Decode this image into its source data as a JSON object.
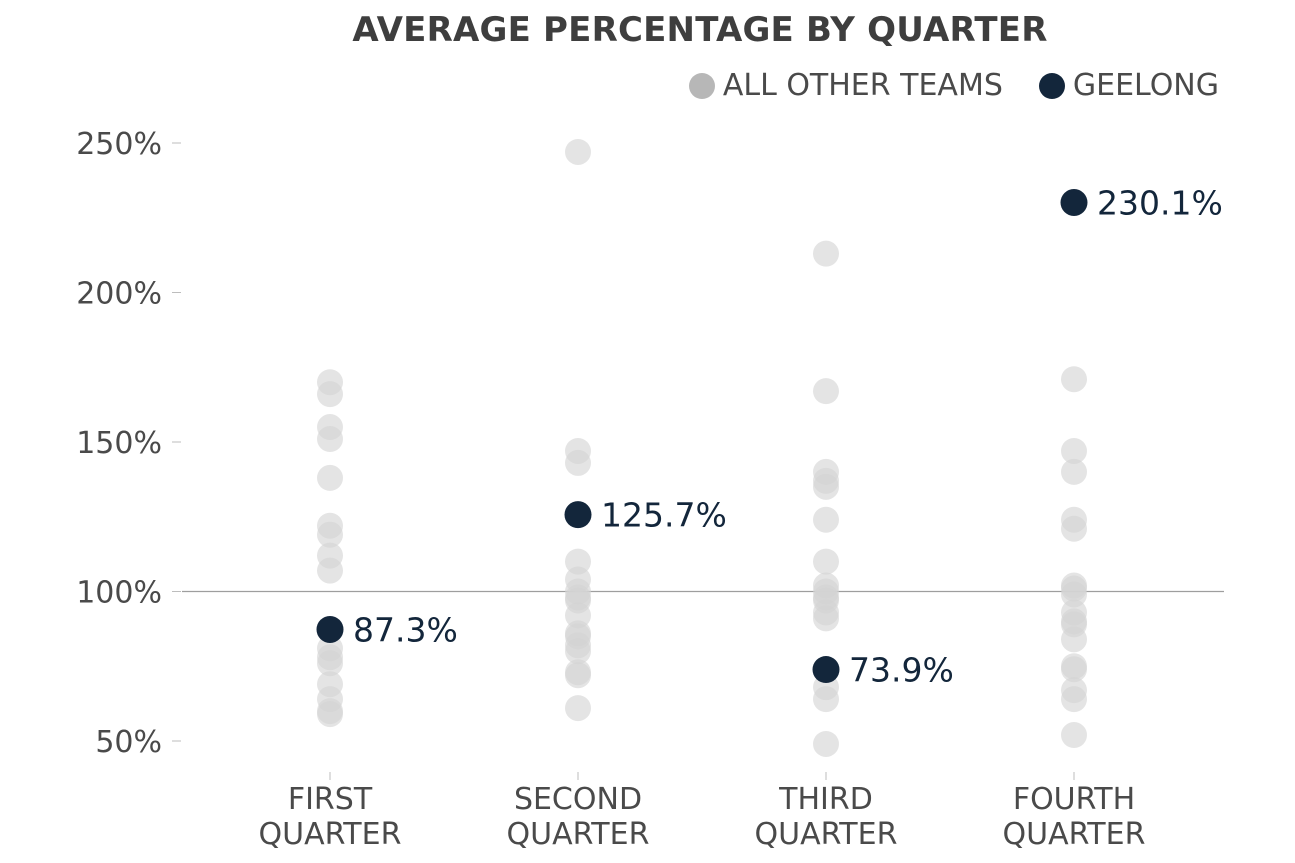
{
  "colors": {
    "other": "#d3d3d3",
    "highlight": "#13263b",
    "reference_line": "#9e9e9e"
  },
  "chart_data": {
    "type": "scatter",
    "title": "AVERAGE PERCENTAGE BY QUARTER",
    "legend": {
      "placement": "top-right",
      "entries": [
        {
          "name": "ALL OTHER TEAMS",
          "color": "#b7b7b7"
        },
        {
          "name": "GEELONG",
          "color": "#13263b"
        }
      ]
    },
    "categories": [
      {
        "line1": "FIRST",
        "line2": "QUARTER"
      },
      {
        "line1": "SECOND",
        "line2": "QUARTER"
      },
      {
        "line1": "THIRD",
        "line2": "QUARTER"
      },
      {
        "line1": "FOURTH",
        "line2": "QUARTER"
      }
    ],
    "ylim": [
      45,
      255
    ],
    "yticks": [
      50,
      100,
      150,
      200,
      250
    ],
    "ytick_labels": [
      "50%",
      "100%",
      "150%",
      "200%",
      "250%"
    ],
    "reference_line": 100,
    "grid": false,
    "series": [
      {
        "name": "ALL OTHER TEAMS",
        "values": [
          [
            170,
            166,
            155,
            151,
            138,
            122,
            119,
            112,
            107,
            81,
            78,
            76,
            69,
            64,
            60,
            59
          ],
          [
            247,
            147,
            143,
            110,
            104,
            100,
            98,
            97,
            92,
            86,
            85,
            82,
            80,
            73,
            72,
            61
          ],
          [
            213,
            167,
            140,
            137,
            135,
            124,
            110,
            102,
            100,
            98,
            97,
            93,
            91,
            68,
            64,
            49
          ],
          [
            171,
            147,
            140,
            124,
            121,
            102,
            101,
            99,
            93,
            90,
            89,
            84,
            75,
            74,
            67,
            64,
            52
          ]
        ]
      },
      {
        "name": "GEELONG",
        "values": [
          87.3,
          125.7,
          73.9,
          230.1
        ],
        "labels": [
          "87.3%",
          "125.7%",
          "73.9%",
          "230.1%"
        ]
      }
    ]
  }
}
